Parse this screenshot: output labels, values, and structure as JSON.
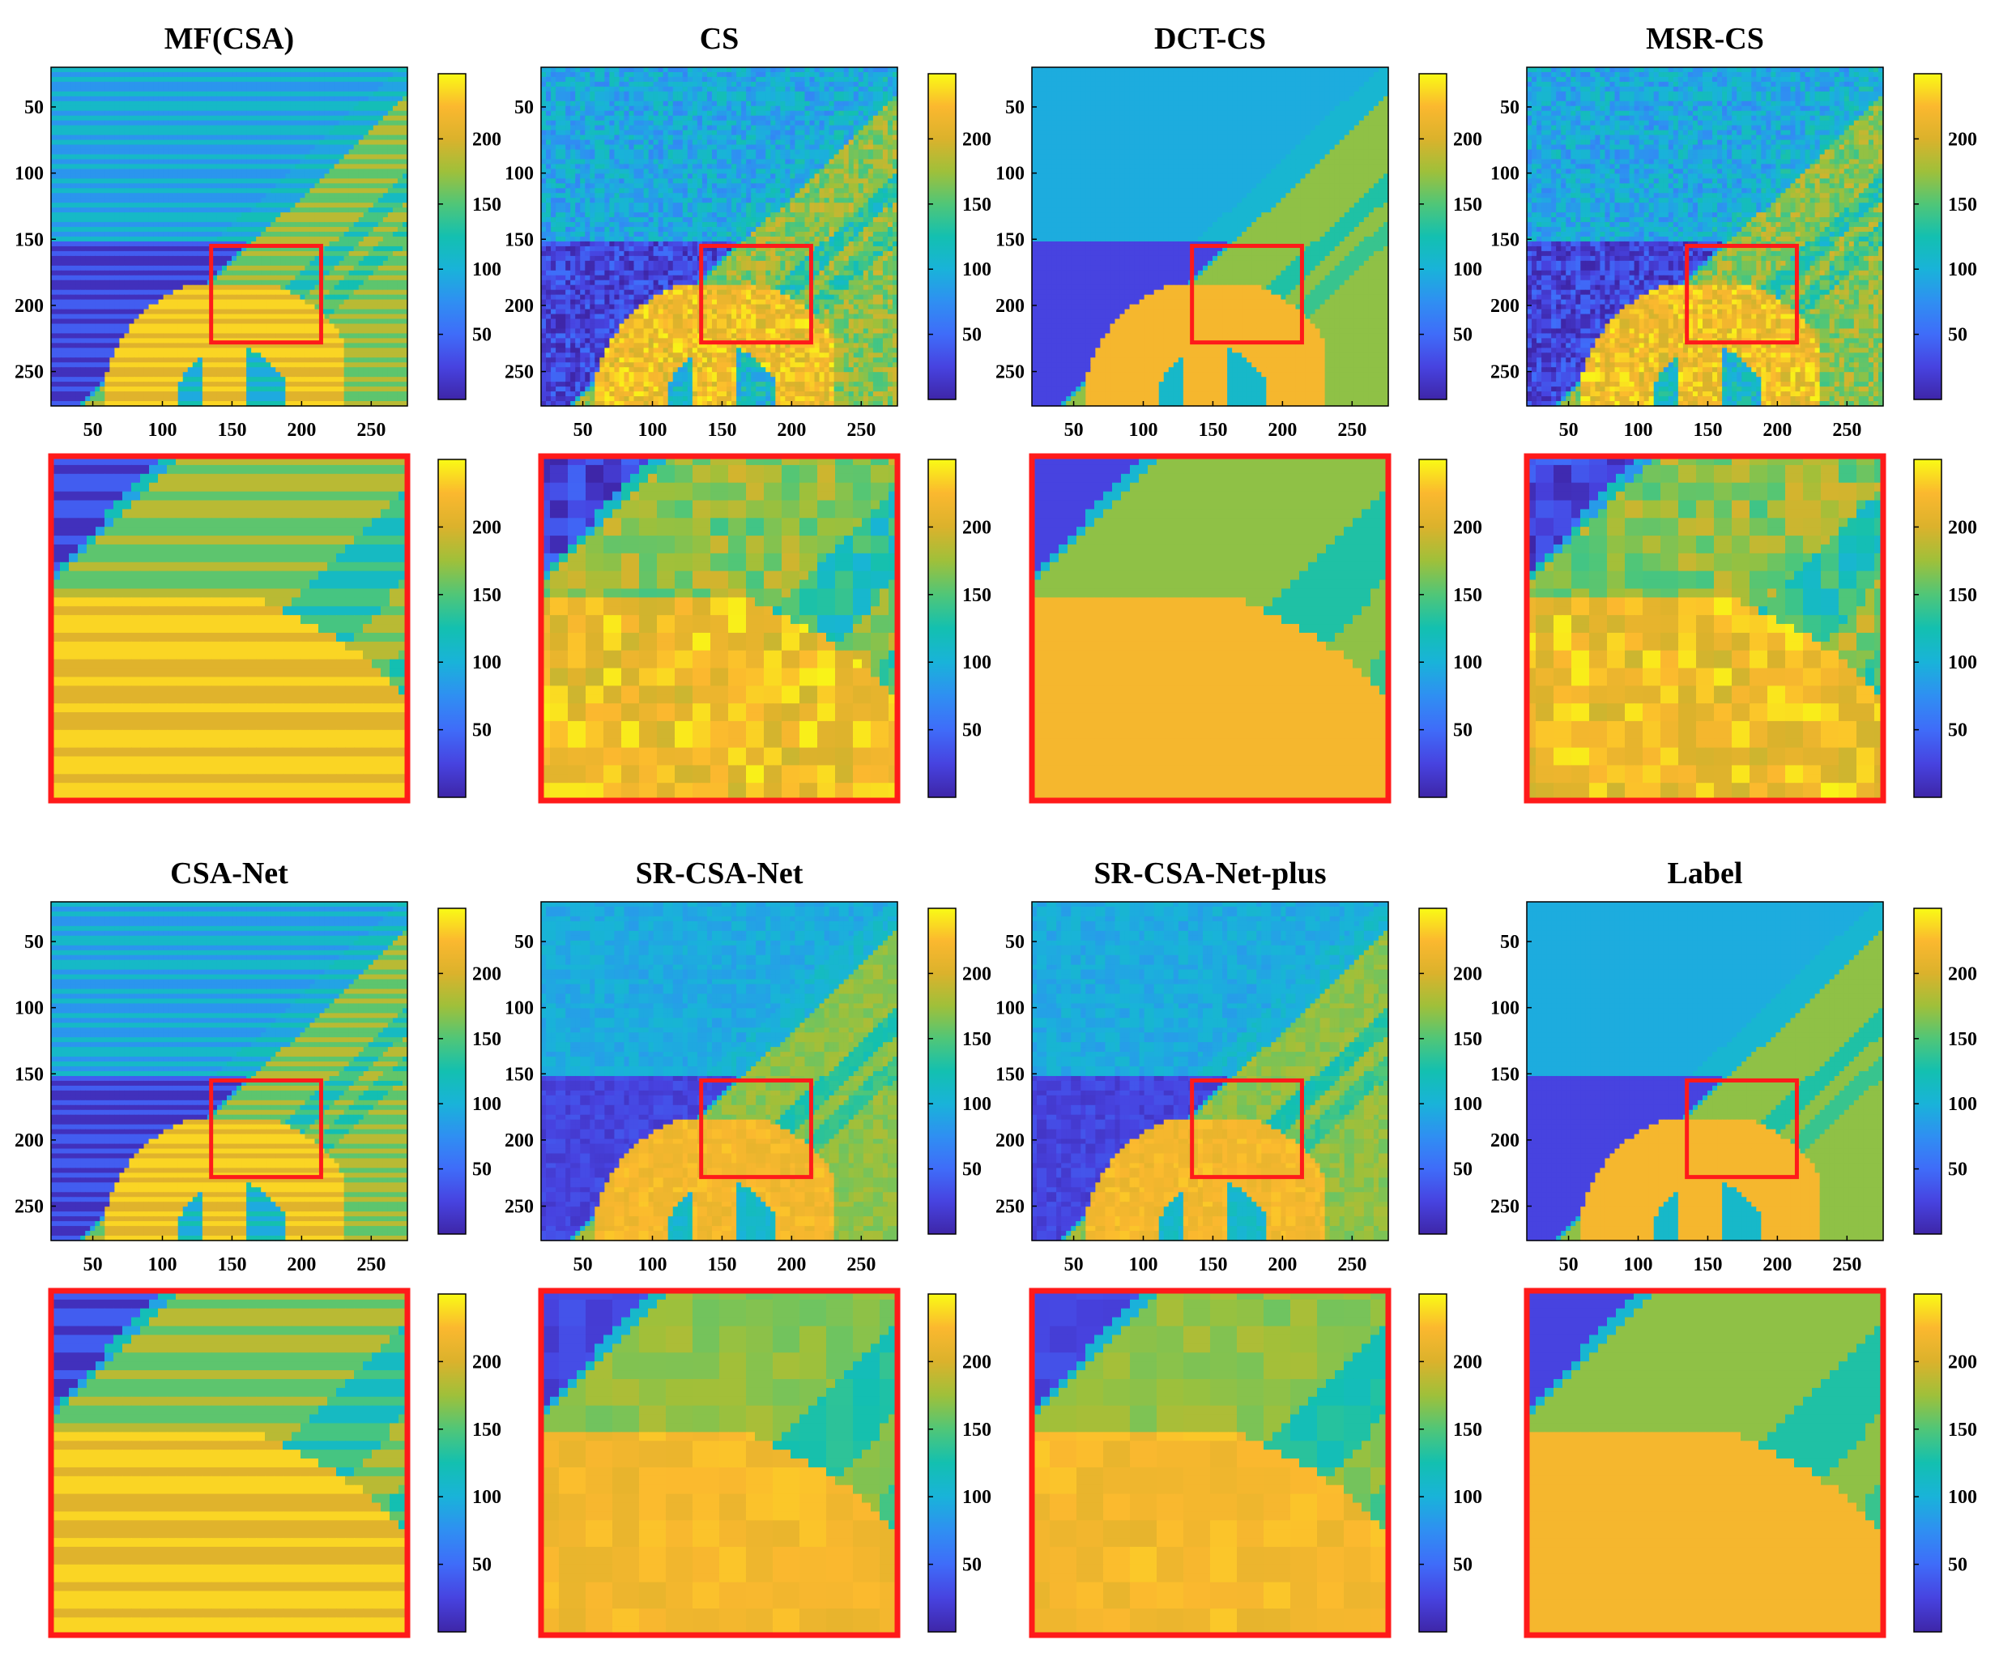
{
  "figure": {
    "colorbar_ticks": [
      50,
      100,
      150,
      200
    ],
    "colormap": [
      "#3e26a8",
      "#4743e0",
      "#3f6cf9",
      "#2f8ff2",
      "#19b3d9",
      "#13c0b0",
      "#50c678",
      "#9fc03a",
      "#dbb22c",
      "#fbb82f",
      "#f9fb15"
    ]
  },
  "chart_data": [
    {
      "type": "heatmap",
      "title": "MF(CSA)",
      "xticks": [
        50,
        100,
        150,
        200,
        250
      ],
      "yticks": [
        50,
        100,
        150,
        200,
        250
      ],
      "xlim": [
        20,
        276
      ],
      "ylim": [
        20,
        276
      ],
      "clim": [
        0,
        250
      ],
      "zoom_region": {
        "x": [
          135,
          214
        ],
        "y": [
          155,
          228
        ]
      },
      "artifacts": "stripes"
    },
    {
      "type": "heatmap",
      "title": "CS",
      "xticks": [
        50,
        100,
        150,
        200,
        250
      ],
      "yticks": [
        50,
        100,
        150,
        200,
        250
      ],
      "xlim": [
        20,
        276
      ],
      "ylim": [
        20,
        276
      ],
      "clim": [
        0,
        250
      ],
      "zoom_region": {
        "x": [
          135,
          214
        ],
        "y": [
          155,
          228
        ]
      },
      "artifacts": "noise"
    },
    {
      "type": "heatmap",
      "title": "DCT-CS",
      "xticks": [
        50,
        100,
        150,
        200,
        250
      ],
      "yticks": [
        50,
        100,
        150,
        200,
        250
      ],
      "xlim": [
        20,
        276
      ],
      "ylim": [
        20,
        276
      ],
      "clim": [
        0,
        250
      ],
      "zoom_region": {
        "x": [
          135,
          214
        ],
        "y": [
          155,
          228
        ]
      },
      "artifacts": "blur"
    },
    {
      "type": "heatmap",
      "title": "MSR-CS",
      "xticks": [
        50,
        100,
        150,
        200,
        250
      ],
      "yticks": [
        50,
        100,
        150,
        200,
        250
      ],
      "xlim": [
        20,
        276
      ],
      "ylim": [
        20,
        276
      ],
      "clim": [
        0,
        250
      ],
      "zoom_region": {
        "x": [
          135,
          214
        ],
        "y": [
          155,
          228
        ]
      },
      "artifacts": "noise"
    },
    {
      "type": "heatmap",
      "title": "CSA-Net",
      "xticks": [
        50,
        100,
        150,
        200,
        250
      ],
      "yticks": [
        50,
        100,
        150,
        200,
        250
      ],
      "xlim": [
        20,
        276
      ],
      "ylim": [
        20,
        276
      ],
      "clim": [
        0,
        250
      ],
      "zoom_region": {
        "x": [
          135,
          214
        ],
        "y": [
          155,
          228
        ]
      },
      "artifacts": "stripes"
    },
    {
      "type": "heatmap",
      "title": "SR-CSA-Net",
      "xticks": [
        50,
        100,
        150,
        200,
        250
      ],
      "yticks": [
        50,
        100,
        150,
        200,
        250
      ],
      "xlim": [
        20,
        276
      ],
      "ylim": [
        20,
        276
      ],
      "clim": [
        0,
        250
      ],
      "zoom_region": {
        "x": [
          135,
          214
        ],
        "y": [
          155,
          228
        ]
      },
      "artifacts": "mild"
    },
    {
      "type": "heatmap",
      "title": "SR-CSA-Net-plus",
      "xticks": [
        50,
        100,
        150,
        200,
        250
      ],
      "yticks": [
        50,
        100,
        150,
        200,
        250
      ],
      "xlim": [
        20,
        276
      ],
      "ylim": [
        20,
        276
      ],
      "clim": [
        0,
        250
      ],
      "zoom_region": {
        "x": [
          135,
          214
        ],
        "y": [
          155,
          228
        ]
      },
      "artifacts": "mild"
    },
    {
      "type": "heatmap",
      "title": "Label",
      "xticks": [
        50,
        100,
        150,
        200,
        250
      ],
      "yticks": [
        50,
        100,
        150,
        200,
        250
      ],
      "xlim": [
        20,
        276
      ],
      "ylim": [
        20,
        276
      ],
      "clim": [
        0,
        250
      ],
      "zoom_region": {
        "x": [
          135,
          214
        ],
        "y": [
          155,
          228
        ]
      },
      "artifacts": "none"
    }
  ]
}
